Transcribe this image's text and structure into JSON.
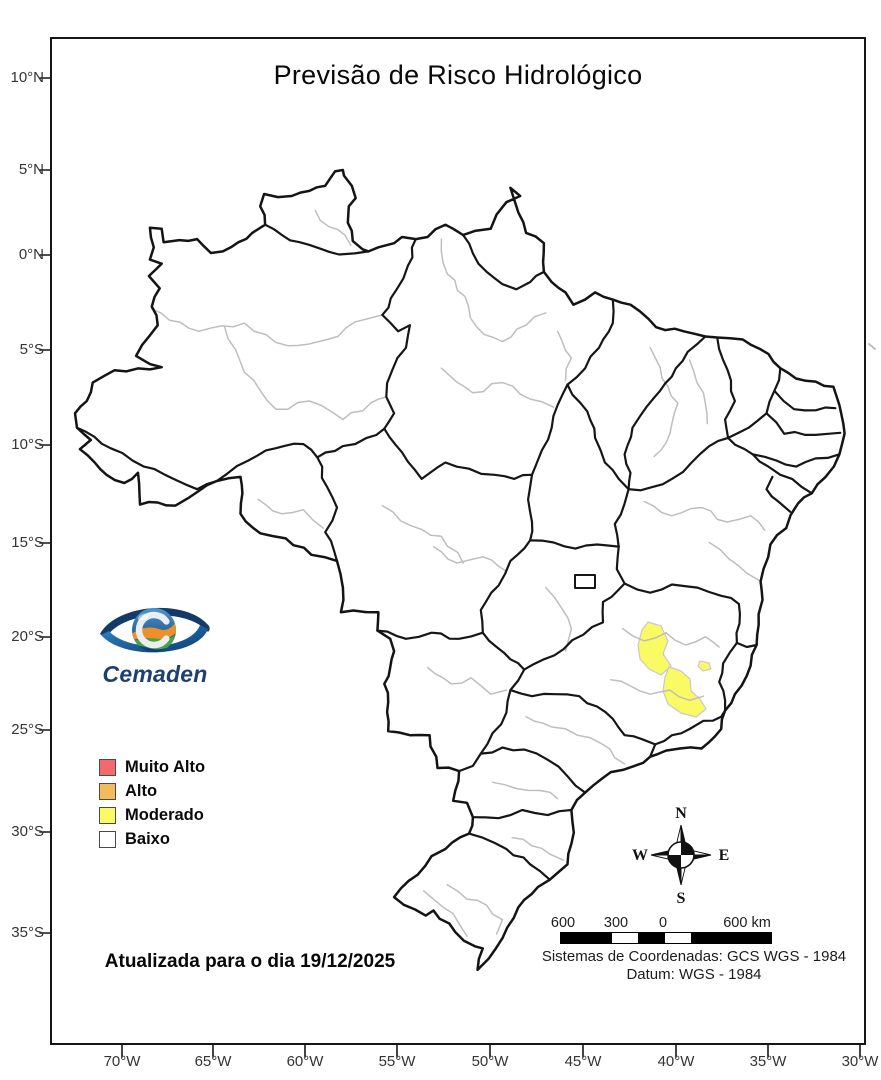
{
  "title": "Previsão de Risco Hidrológico",
  "legend": {
    "items": [
      {
        "label": "Muito Alto",
        "color": "#F4696B"
      },
      {
        "label": "Alto",
        "color": "#F4BA5E"
      },
      {
        "label": "Moderado",
        "color": "#FAFA64"
      },
      {
        "label": "Baixo",
        "color": "#FFFFFF"
      }
    ]
  },
  "risk_highlight": {
    "level": "Moderado",
    "color": "#FAFA64"
  },
  "update_note": "Atualizada para o dia 19/12/2025",
  "logo": {
    "text": "Cemaden"
  },
  "compass": {
    "north": "N",
    "south": "S",
    "east": "E",
    "west": "W"
  },
  "scalebar": {
    "labels": [
      "600",
      "300",
      "0",
      "600 km"
    ]
  },
  "crs": {
    "line1": "Sistemas de Coordenadas: GCS WGS - 1984",
    "line2": "Datum: WGS - 1984"
  },
  "axes": {
    "lat": [
      "10°N",
      "5°N",
      "0°N",
      "5°S",
      "10°S",
      "15°S",
      "20°S",
      "25°S",
      "30°S",
      "35°S"
    ],
    "lon": [
      "70°W",
      "65°W",
      "60°W",
      "55°W",
      "50°W",
      "45°W",
      "40°W",
      "35°W",
      "30°W"
    ]
  }
}
